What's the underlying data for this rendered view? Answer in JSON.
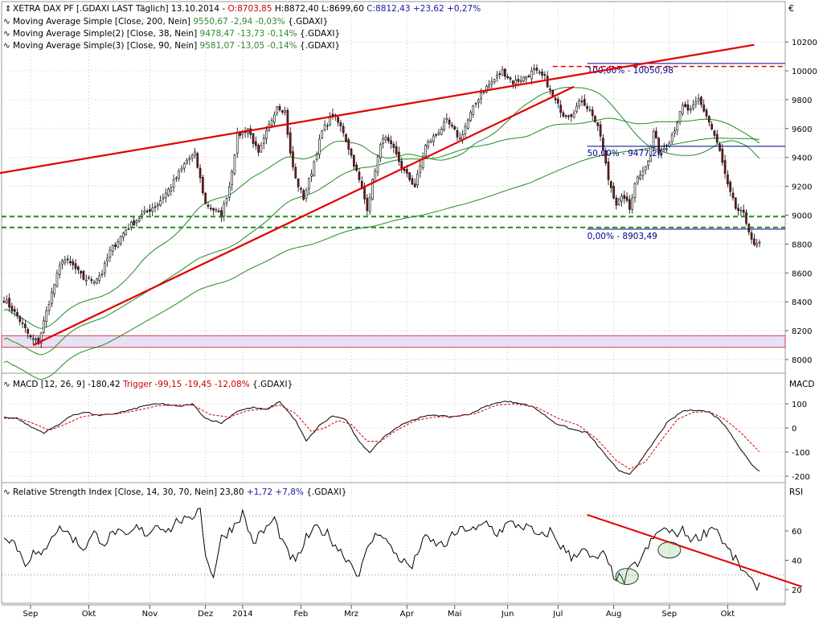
{
  "currency_symbol": "€",
  "header": {
    "line1": [
      {
        "text": "XETRA DAX PF [.GDAXI LAST Täglich] 13.10.2014 - ",
        "color": "#000000"
      },
      {
        "text": "O:8703,85",
        "color": "#cc0000"
      },
      {
        "text": " H:8872,40 L:8699,60 ",
        "color": "#000000"
      },
      {
        "text": "C:8812,43 +23,62 +0,27%",
        "color": "#1a1aa6"
      }
    ],
    "line2": [
      {
        "text": "Moving Average Simple [Close, 200, Nein] ",
        "color": "#000000"
      },
      {
        "text": "9550,67 -2,94 -0,03%",
        "color": "#2f8a2f"
      },
      {
        "text": " {.GDAXI}",
        "color": "#000000"
      }
    ],
    "line3": [
      {
        "text": "Moving Average Simple(2) [Close, 38, Nein] ",
        "color": "#000000"
      },
      {
        "text": "9478,47 -13,73 -0,14%",
        "color": "#2f8a2f"
      },
      {
        "text": " {.GDAXI}",
        "color": "#000000"
      }
    ],
    "line4": [
      {
        "text": "Moving Average Simple(3) [Close, 90, Nein] ",
        "color": "#000000"
      },
      {
        "text": "9581,07 -13,05 -0,14%",
        "color": "#2f8a2f"
      },
      {
        "text": " {.GDAXI}",
        "color": "#000000"
      }
    ]
  },
  "macd_header": [
    {
      "text": "MACD [12, 26, 9] -180,42 ",
      "color": "#000000"
    },
    {
      "text": "Trigger -99,15 -19,45 -12,08%",
      "color": "#cc0000"
    },
    {
      "text": " {.GDAXI}",
      "color": "#000000"
    }
  ],
  "rsi_header": [
    {
      "text": "Relative Strength Index [Close, 14, 30, 70, Nein] 23,80 ",
      "color": "#000000"
    },
    {
      "text": "+1,72 +7,8%",
      "color": "#1a1aa6"
    },
    {
      "text": " {.GDAXI}",
      "color": "#000000"
    }
  ],
  "colors": {
    "grid": "#c8c8c8",
    "candle_up": "#ffffff",
    "candle_down": "#8b1a1a",
    "ma": "#228b22",
    "trendline": "#e00000",
    "support": "#228b22",
    "fib": "#00008b",
    "zone_fill": "#e8e0f4",
    "zone_border": "#d04040"
  },
  "chart_data": [
    {
      "type": "candlestick",
      "panel": "price",
      "ylim": [
        7920,
        10130
      ],
      "y_ticks": [
        8000,
        8200,
        8400,
        8600,
        8800,
        9000,
        9200,
        9400,
        9600,
        9800,
        10000,
        10200
      ],
      "y_tick_labels": [
        "8000",
        "8200",
        "8400",
        "8600",
        "8800",
        "9000",
        "9200",
        "9400",
        "9600",
        "9800",
        "10000",
        "10200"
      ],
      "x_ticks": [
        {
          "label": "Sep",
          "index": 10
        },
        {
          "label": "Okt",
          "index": 32
        },
        {
          "label": "Nov",
          "index": 55
        },
        {
          "label": "Dez",
          "index": 76
        },
        {
          "label": "2014",
          "index": 90
        },
        {
          "label": "Feb",
          "index": 112
        },
        {
          "label": "Mrz",
          "index": 131
        },
        {
          "label": "Apr",
          "index": 152
        },
        {
          "label": "Mai",
          "index": 170
        },
        {
          "label": "Jun",
          "index": 190
        },
        {
          "label": "Jul",
          "index": 209
        },
        {
          "label": "Aug",
          "index": 230
        },
        {
          "label": "Sep",
          "index": 251
        },
        {
          "label": "Okt",
          "index": 273
        }
      ],
      "n_bars": 286,
      "close_anchors": [
        [
          0,
          8420
        ],
        [
          5,
          8300
        ],
        [
          10,
          8150
        ],
        [
          13,
          8120
        ],
        [
          17,
          8400
        ],
        [
          22,
          8700
        ],
        [
          26,
          8650
        ],
        [
          30,
          8560
        ],
        [
          34,
          8550
        ],
        [
          37,
          8600
        ],
        [
          40,
          8750
        ],
        [
          46,
          8900
        ],
        [
          52,
          9000
        ],
        [
          58,
          9080
        ],
        [
          63,
          9200
        ],
        [
          69,
          9380
        ],
        [
          72,
          9420
        ],
        [
          76,
          9080
        ],
        [
          82,
          9000
        ],
        [
          85,
          9200
        ],
        [
          88,
          9550
        ],
        [
          92,
          9600
        ],
        [
          96,
          9420
        ],
        [
          100,
          9620
        ],
        [
          103,
          9760
        ],
        [
          106,
          9720
        ],
        [
          108,
          9420
        ],
        [
          110,
          9250
        ],
        [
          113,
          9120
        ],
        [
          116,
          9300
        ],
        [
          120,
          9580
        ],
        [
          124,
          9700
        ],
        [
          128,
          9580
        ],
        [
          133,
          9300
        ],
        [
          137,
          9050
        ],
        [
          140,
          9320
        ],
        [
          143,
          9550
        ],
        [
          147,
          9450
        ],
        [
          151,
          9300
        ],
        [
          155,
          9200
        ],
        [
          159,
          9480
        ],
        [
          163,
          9560
        ],
        [
          167,
          9650
        ],
        [
          172,
          9530
        ],
        [
          176,
          9700
        ],
        [
          180,
          9850
        ],
        [
          184,
          9920
        ],
        [
          188,
          10000
        ],
        [
          192,
          9920
        ],
        [
          196,
          9950
        ],
        [
          200,
          10000
        ],
        [
          204,
          9950
        ],
        [
          207,
          9820
        ],
        [
          211,
          9700
        ],
        [
          214,
          9700
        ],
        [
          218,
          9800
        ],
        [
          222,
          9700
        ],
        [
          225,
          9550
        ],
        [
          228,
          9250
        ],
        [
          231,
          9080
        ],
        [
          234,
          9130
        ],
        [
          236,
          9040
        ],
        [
          238,
          9230
        ],
        [
          241,
          9320
        ],
        [
          243,
          9370
        ],
        [
          245,
          9580
        ],
        [
          247,
          9450
        ],
        [
          250,
          9480
        ],
        [
          253,
          9600
        ],
        [
          256,
          9750
        ],
        [
          259,
          9720
        ],
        [
          262,
          9800
        ],
        [
          265,
          9690
        ],
        [
          268,
          9550
        ],
        [
          270,
          9440
        ],
        [
          273,
          9200
        ],
        [
          276,
          9050
        ],
        [
          279,
          9000
        ],
        [
          281,
          8900
        ],
        [
          283,
          8780
        ],
        [
          285,
          8812
        ]
      ],
      "support_lines": [
        8990,
        8915
      ],
      "zone": [
        8085,
        8165
      ],
      "fibonacci": [
        {
          "label": "100,00% - 10050,98",
          "value": 10050.98
        },
        {
          "label": "50,00% - 9477,24",
          "value": 9477.24
        },
        {
          "label": "0,00% - 8903,49",
          "value": 8903.49
        }
      ],
      "trend_upper": [
        [
          -2,
          9290
        ],
        [
          283,
          10180
        ]
      ],
      "trend_lower": [
        [
          11,
          8100
        ],
        [
          215,
          9890
        ]
      ],
      "series": [
        {
          "name": "Moving Average Simple [Close, 200, Nein]",
          "last": 9550.67
        },
        {
          "name": "Moving Average Simple(2) [Close, 38, Nein]",
          "last": 9478.47
        },
        {
          "name": "Moving Average Simple(3) [Close, 90, Nein]",
          "last": 9581.07
        }
      ]
    },
    {
      "type": "line",
      "panel": "macd",
      "ylabel": "MACD",
      "ylim": [
        -225,
        155
      ],
      "y_ticks": [
        -200,
        -100,
        0,
        100
      ],
      "y_tick_labels": [
        "-200",
        "-100",
        "0",
        "100"
      ],
      "anchors": [
        [
          0,
          45
        ],
        [
          5,
          40
        ],
        [
          10,
          5
        ],
        [
          15,
          -20
        ],
        [
          20,
          10
        ],
        [
          26,
          55
        ],
        [
          31,
          65
        ],
        [
          36,
          50
        ],
        [
          42,
          60
        ],
        [
          48,
          75
        ],
        [
          54,
          95
        ],
        [
          60,
          100
        ],
        [
          66,
          88
        ],
        [
          71,
          100
        ],
        [
          76,
          40
        ],
        [
          82,
          20
        ],
        [
          88,
          70
        ],
        [
          94,
          85
        ],
        [
          99,
          75
        ],
        [
          104,
          110
        ],
        [
          110,
          30
        ],
        [
          114,
          -55
        ],
        [
          119,
          10
        ],
        [
          124,
          50
        ],
        [
          129,
          35
        ],
        [
          134,
          -60
        ],
        [
          138,
          -100
        ],
        [
          144,
          -30
        ],
        [
          150,
          15
        ],
        [
          156,
          40
        ],
        [
          162,
          55
        ],
        [
          168,
          45
        ],
        [
          175,
          55
        ],
        [
          182,
          90
        ],
        [
          188,
          110
        ],
        [
          194,
          105
        ],
        [
          200,
          85
        ],
        [
          208,
          20
        ],
        [
          214,
          -5
        ],
        [
          220,
          -20
        ],
        [
          226,
          -100
        ],
        [
          232,
          -180
        ],
        [
          236,
          -190
        ],
        [
          240,
          -140
        ],
        [
          245,
          -60
        ],
        [
          250,
          20
        ],
        [
          256,
          70
        ],
        [
          262,
          75
        ],
        [
          266,
          65
        ],
        [
          270,
          35
        ],
        [
          274,
          -20
        ],
        [
          278,
          -90
        ],
        [
          282,
          -150
        ],
        [
          285,
          -180
        ]
      ],
      "trigger_anchors": [
        [
          0,
          40
        ],
        [
          6,
          38
        ],
        [
          12,
          15
        ],
        [
          17,
          -10
        ],
        [
          23,
          15
        ],
        [
          29,
          45
        ],
        [
          35,
          55
        ],
        [
          42,
          57
        ],
        [
          50,
          72
        ],
        [
          58,
          92
        ],
        [
          65,
          95
        ],
        [
          71,
          95
        ],
        [
          78,
          55
        ],
        [
          85,
          45
        ],
        [
          92,
          72
        ],
        [
          98,
          78
        ],
        [
          104,
          95
        ],
        [
          110,
          60
        ],
        [
          116,
          -15
        ],
        [
          121,
          0
        ],
        [
          126,
          30
        ],
        [
          131,
          15
        ],
        [
          137,
          -55
        ],
        [
          142,
          -55
        ],
        [
          148,
          -10
        ],
        [
          155,
          30
        ],
        [
          162,
          45
        ],
        [
          170,
          48
        ],
        [
          178,
          60
        ],
        [
          186,
          95
        ],
        [
          193,
          100
        ],
        [
          201,
          85
        ],
        [
          209,
          40
        ],
        [
          217,
          10
        ],
        [
          224,
          -50
        ],
        [
          231,
          -135
        ],
        [
          236,
          -170
        ],
        [
          242,
          -140
        ],
        [
          248,
          -50
        ],
        [
          254,
          35
        ],
        [
          260,
          65
        ],
        [
          266,
          68
        ],
        [
          272,
          35
        ],
        [
          278,
          -20
        ],
        [
          285,
          -99
        ]
      ]
    },
    {
      "type": "line",
      "panel": "rsi",
      "ylabel": "RSI",
      "ylim": [
        14,
        88
      ],
      "y_ticks": [
        20,
        40,
        60
      ],
      "y_tick_labels": [
        "20",
        "40",
        "60"
      ],
      "levels": [
        30,
        70
      ],
      "anchors": [
        [
          0,
          58
        ],
        [
          4,
          52
        ],
        [
          8,
          38
        ],
        [
          11,
          45
        ],
        [
          14,
          42
        ],
        [
          18,
          58
        ],
        [
          22,
          62
        ],
        [
          26,
          55
        ],
        [
          30,
          48
        ],
        [
          34,
          58
        ],
        [
          38,
          52
        ],
        [
          42,
          60
        ],
        [
          46,
          55
        ],
        [
          50,
          62
        ],
        [
          54,
          58
        ],
        [
          58,
          65
        ],
        [
          62,
          60
        ],
        [
          66,
          68
        ],
        [
          70,
          66
        ],
        [
          74,
          78
        ],
        [
          76,
          42
        ],
        [
          79,
          30
        ],
        [
          82,
          55
        ],
        [
          86,
          62
        ],
        [
          90,
          72
        ],
        [
          94,
          52
        ],
        [
          98,
          60
        ],
        [
          102,
          68
        ],
        [
          106,
          48
        ],
        [
          110,
          38
        ],
        [
          114,
          55
        ],
        [
          118,
          62
        ],
        [
          122,
          58
        ],
        [
          126,
          48
        ],
        [
          130,
          40
        ],
        [
          134,
          30
        ],
        [
          138,
          52
        ],
        [
          142,
          60
        ],
        [
          146,
          48
        ],
        [
          150,
          40
        ],
        [
          154,
          35
        ],
        [
          158,
          55
        ],
        [
          162,
          52
        ],
        [
          166,
          50
        ],
        [
          170,
          58
        ],
        [
          174,
          62
        ],
        [
          178,
          60
        ],
        [
          182,
          66
        ],
        [
          186,
          58
        ],
        [
          190,
          65
        ],
        [
          194,
          64
        ],
        [
          198,
          62
        ],
        [
          202,
          55
        ],
        [
          206,
          60
        ],
        [
          210,
          50
        ],
        [
          214,
          42
        ],
        [
          218,
          48
        ],
        [
          222,
          40
        ],
        [
          226,
          44
        ],
        [
          230,
          30
        ],
        [
          234,
          26
        ],
        [
          236,
          33
        ],
        [
          240,
          40
        ],
        [
          244,
          52
        ],
        [
          248,
          62
        ],
        [
          252,
          58
        ],
        [
          256,
          60
        ],
        [
          260,
          54
        ],
        [
          264,
          58
        ],
        [
          268,
          64
        ],
        [
          272,
          50
        ],
        [
          276,
          40
        ],
        [
          280,
          30
        ],
        [
          283,
          22
        ],
        [
          285,
          24
        ]
      ],
      "trendline": [
        [
          220,
          71
        ],
        [
          301,
          22
        ]
      ],
      "ellipses": [
        [
          235,
          29
        ],
        [
          251,
          47
        ]
      ]
    }
  ]
}
